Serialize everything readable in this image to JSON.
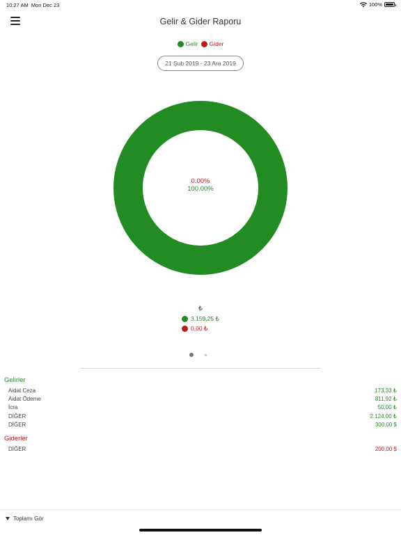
{
  "status_bar": {
    "time": "10:27 AM",
    "date": "Mon Dec 23",
    "battery": "100%"
  },
  "header": {
    "title": "Gelir & Gider Raporu"
  },
  "legend": [
    {
      "label": "Gelir",
      "color": "#228b22"
    },
    {
      "label": "Gider",
      "color": "#b81c1c"
    }
  ],
  "date_range": "21 Şub 2019 - 23 Ara 2019",
  "chart_data": {
    "type": "pie",
    "style": "donut",
    "labels": [
      "Gelir",
      "Gider"
    ],
    "values": [
      100.0,
      0.0
    ],
    "colors": [
      "#228b22",
      "#b81c1c"
    ],
    "center_labels": [
      "0.00%",
      "100.00%"
    ]
  },
  "summary": {
    "currency": "₺",
    "income_total": "3.159,25 ₺",
    "expense_total": "0,00 ₺"
  },
  "pager": {
    "pages": 2,
    "current": 1
  },
  "gelirler": {
    "title": "Gelirler",
    "items": [
      {
        "name": "Aidat Ceza",
        "amount": "173,33 ₺"
      },
      {
        "name": "Aidat Ödeme",
        "amount": "811,92 ₺"
      },
      {
        "name": "İcra",
        "amount": "50,00 ₺"
      },
      {
        "name": "DİĞER",
        "amount": "2.124,00 ₺"
      },
      {
        "name": "DİĞER",
        "amount": "300,00 $"
      }
    ]
  },
  "giderler": {
    "title": "Giderler",
    "items": [
      {
        "name": "DİĞER",
        "amount": "200,00 $"
      }
    ]
  },
  "footer": {
    "toggle_label": "Toplamı Gör"
  }
}
